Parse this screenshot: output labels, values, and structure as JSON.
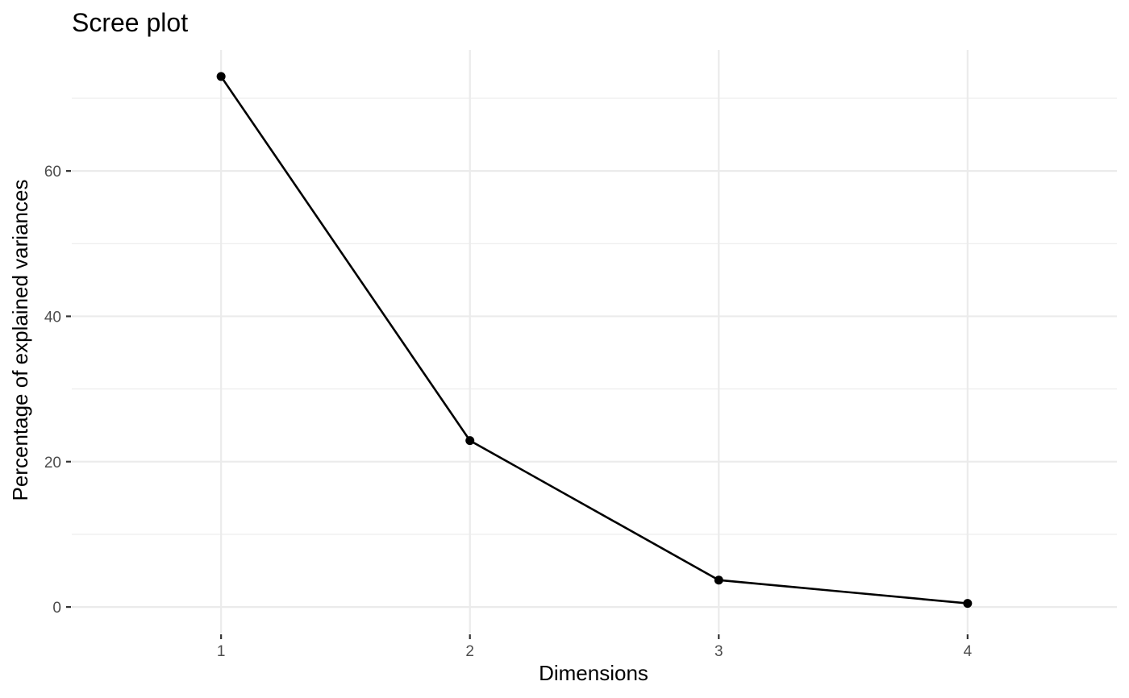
{
  "chart_data": {
    "type": "line",
    "title": "Scree plot",
    "xlabel": "Dimensions",
    "ylabel": "Percentage of explained variances",
    "x": [
      1,
      2,
      3,
      4
    ],
    "values": [
      73.0,
      22.9,
      3.7,
      0.5
    ],
    "xlim": [
      0.4,
      4.6
    ],
    "ylim": [
      -3.65,
      76.65
    ],
    "x_ticks": [
      1,
      2,
      3,
      4
    ],
    "y_ticks": [
      0,
      20,
      40,
      60
    ],
    "y_minor_ticks": [
      10,
      30,
      50,
      70
    ],
    "grid": true,
    "legend": "none",
    "colors": {
      "line": "#000000",
      "point": "#000000",
      "grid": "#ebebeb",
      "tick_text": "#4d4d4d"
    }
  }
}
